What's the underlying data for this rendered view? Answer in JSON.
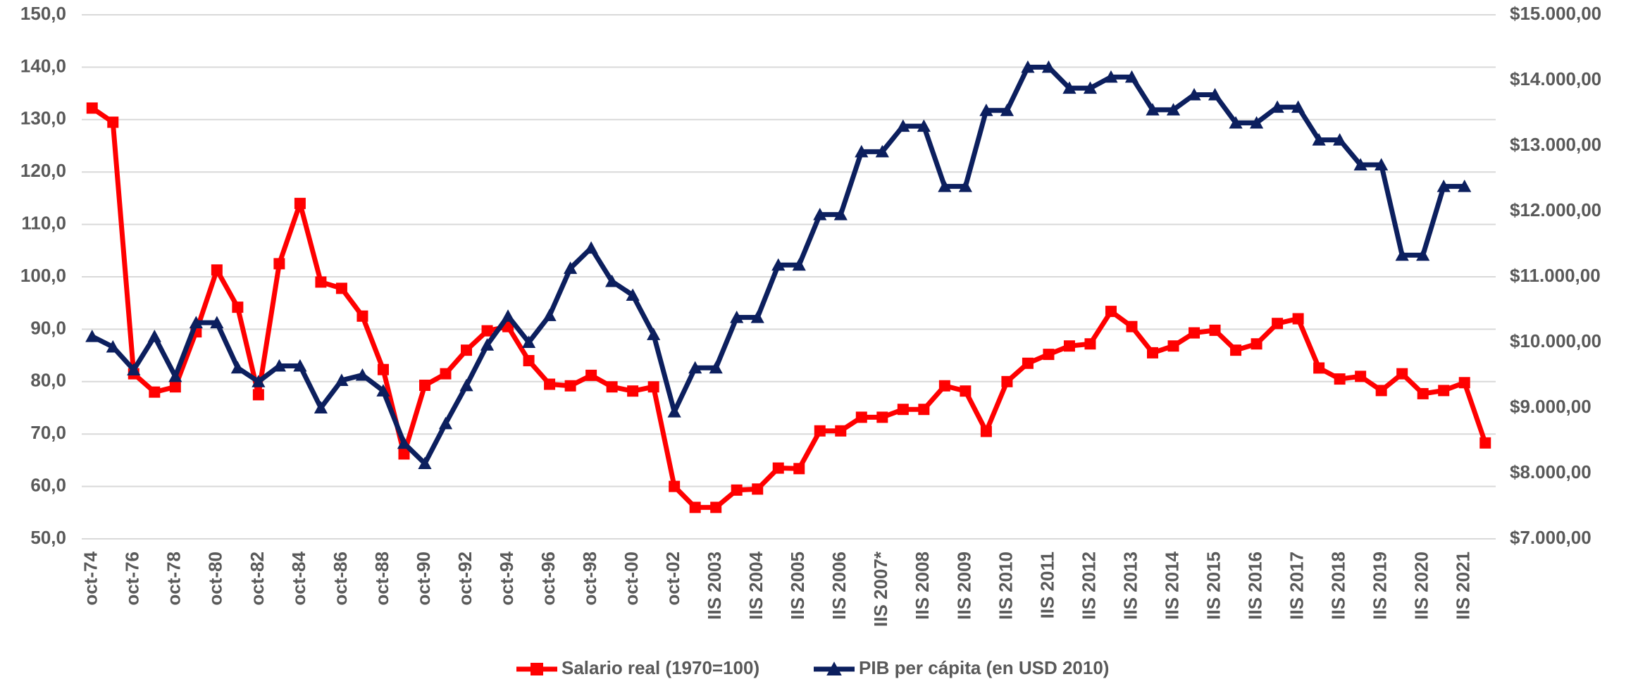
{
  "chart_data": {
    "type": "line",
    "categories": [
      "oct-74",
      null,
      "oct-76",
      null,
      "oct-78",
      null,
      "oct-80",
      null,
      "oct-82",
      null,
      "oct-84",
      null,
      "oct-86",
      null,
      "oct-88",
      null,
      "oct-90",
      null,
      "oct-92",
      null,
      "oct-94",
      null,
      "oct-96",
      null,
      "oct-98",
      null,
      "oct-00",
      null,
      "oct-02",
      null,
      "IIS 2003",
      null,
      "IIS 2004",
      null,
      "IIS 2005",
      null,
      "IIS 2006",
      null,
      "IIS 2007*",
      null,
      "IIS 2008",
      null,
      "IIS 2009",
      null,
      "IIS 2010",
      null,
      "IIS 2011",
      null,
      "IIS 2012",
      null,
      "IIS 2013",
      null,
      "IIS 2014",
      null,
      "IIS 2015",
      null,
      "IIS 2016",
      null,
      "IIS 2017",
      null,
      "IIS 2018",
      null,
      "IIS 2019",
      null,
      "IIS 2020",
      null,
      "IIS 2021",
      null
    ],
    "series": [
      {
        "name": "Salario real (1970=100)",
        "color": "#ff0000",
        "marker": "square",
        "values": [
          132.2,
          129.5,
          81.5,
          78,
          79,
          89.5,
          101.3,
          94.2,
          77.5,
          102.5,
          114,
          99,
          97.8,
          92.5,
          82.3,
          66.2,
          79.3,
          81.5,
          86,
          89.7,
          90.5,
          84,
          79.5,
          79.2,
          81.2,
          79,
          78.2,
          79,
          60,
          56,
          56,
          59.3,
          59.5,
          63.5,
          63.4,
          70.6,
          70.6,
          73.2,
          73.2,
          74.7,
          74.7,
          79.2,
          78.2,
          70.5,
          80,
          83.5,
          85.2,
          86.8,
          87.2,
          93.4,
          90.5,
          85.5,
          86.8,
          89.3,
          89.8,
          86,
          87.2,
          91.1,
          92,
          82.6,
          80.5,
          81,
          78.3,
          81.5,
          77.7,
          78.3,
          79.8,
          68.3
        ]
      },
      {
        "name": "PIB per cápita (en USD 2010)",
        "color": "#0c1f5e",
        "marker": "triangle",
        "axis": "y2",
        "values": [
          10090,
          9930,
          9580,
          10090,
          9480,
          10300,
          10300,
          9610,
          9400,
          9640,
          9640,
          9000,
          9420,
          9500,
          9260,
          8460,
          8150,
          8760,
          9340,
          9960,
          10400,
          10000,
          10410,
          11130,
          11440,
          10930,
          10720,
          10120,
          8940,
          9610,
          9610,
          10380,
          10380,
          11180,
          11180,
          11950,
          11950,
          12910,
          12910,
          13300,
          13300,
          12380,
          12380,
          13540,
          13540,
          14200,
          14200,
          13880,
          13880,
          14050,
          14050,
          13550,
          13550,
          13780,
          13780,
          13350,
          13350,
          13590,
          13590,
          13090,
          13090,
          12710,
          12710,
          11330,
          11330,
          12380,
          12380,
          null
        ]
      }
    ],
    "ylim": [
      50,
      150
    ],
    "yticks": [
      {
        "value": 50,
        "label": "50,0"
      },
      {
        "value": 60,
        "label": "60,0"
      },
      {
        "value": 70,
        "label": "70,0"
      },
      {
        "value": 80,
        "label": "80,0"
      },
      {
        "value": 90,
        "label": "90,0"
      },
      {
        "value": 100,
        "label": "100,0"
      },
      {
        "value": 110,
        "label": "110,0"
      },
      {
        "value": 120,
        "label": "120,0"
      },
      {
        "value": 130,
        "label": "130,0"
      },
      {
        "value": 140,
        "label": "140,0"
      },
      {
        "value": 150,
        "label": "150,0"
      }
    ],
    "y2lim": [
      7000,
      15000
    ],
    "y2ticks": [
      {
        "value": 7000,
        "label": "$7.000,00"
      },
      {
        "value": 8000,
        "label": "$8.000,00"
      },
      {
        "value": 9000,
        "label": "$9.000,00"
      },
      {
        "value": 10000,
        "label": "$10.000,00"
      },
      {
        "value": 11000,
        "label": "$11.000,00"
      },
      {
        "value": 12000,
        "label": "$12.000,00"
      },
      {
        "value": 13000,
        "label": "$13.000,00"
      },
      {
        "value": 14000,
        "label": "$14.000,00"
      },
      {
        "value": 15000,
        "label": "$15.000,00"
      }
    ],
    "grid": true,
    "legend": "bottom"
  }
}
